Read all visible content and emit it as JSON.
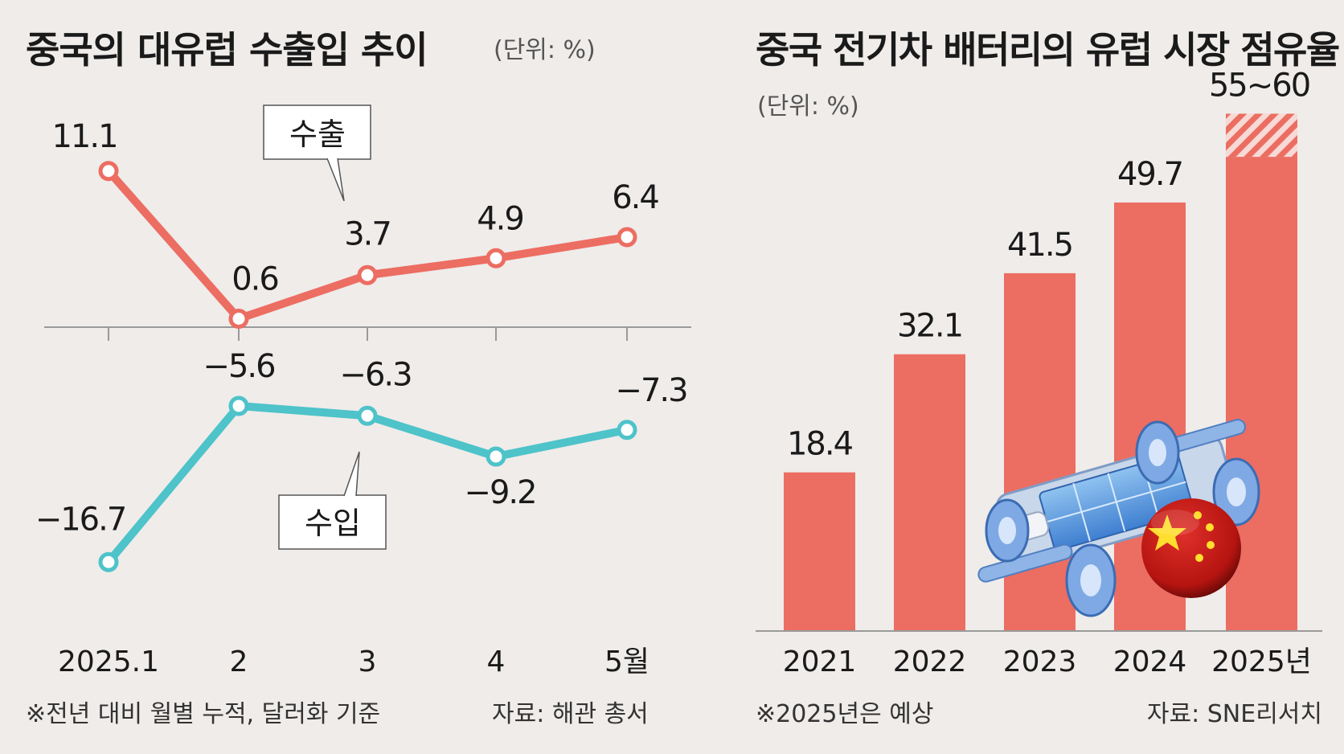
{
  "colors": {
    "background": "#efecea",
    "export_line": "#ec6d62",
    "import_line": "#4ec3c9",
    "bar": "#ec6d62",
    "axis": "#9a9a9a",
    "text": "#1a1a1a"
  },
  "chart_data": [
    {
      "type": "line",
      "title": "중국의 대유럽 수출입 추이",
      "unit_label": "(단위: %)",
      "categories": [
        "2025.1",
        "2",
        "3",
        "4",
        "5월"
      ],
      "series": [
        {
          "name": "수출",
          "values": [
            11.1,
            0.6,
            3.7,
            4.9,
            6.4
          ],
          "value_labels": [
            "11.1",
            "0.6",
            "3.7",
            "4.9",
            "6.4"
          ]
        },
        {
          "name": "수입",
          "values": [
            -16.7,
            -5.6,
            -6.3,
            -9.2,
            -7.3
          ],
          "value_labels": [
            "−16.7",
            "−5.6",
            "−6.3",
            "−9.2",
            "−7.3"
          ]
        }
      ],
      "footnote": "※전년 대비 월별 누적, 달러화 기준",
      "source": "자료: 해관 총서"
    },
    {
      "type": "bar",
      "title": "중국 전기차 배터리의 유럽 시장 점유율",
      "unit_label": "(단위: %)",
      "categories": [
        "2021",
        "2022",
        "2023",
        "2024",
        "2025년"
      ],
      "values": [
        18.4,
        32.1,
        41.5,
        49.7,
        55
      ],
      "range_top": 60,
      "value_labels": [
        "18.4",
        "32.1",
        "41.5",
        "49.7",
        "55~60"
      ],
      "ylim": [
        0,
        62
      ],
      "footnote": "※2025년은 예상",
      "source": "자료: SNE리서치"
    }
  ]
}
